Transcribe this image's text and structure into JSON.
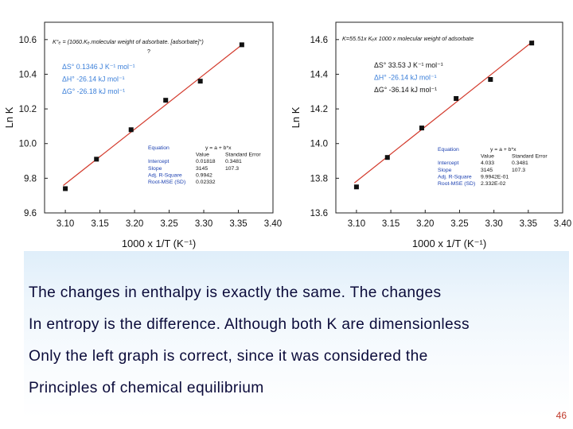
{
  "chart_data": [
    {
      "type": "scatter",
      "x": [
        3.1,
        3.145,
        3.195,
        3.245,
        3.295,
        3.355
      ],
      "y": [
        9.74,
        9.91,
        10.08,
        10.25,
        10.36,
        10.57
      ],
      "fit_line": {
        "intercept": 0.01818,
        "slope": 3.145
      },
      "xlabel": "1000 x 1/T (K⁻¹)",
      "ylabel": "Ln K",
      "xlim": [
        3.07,
        3.4
      ],
      "ylim": [
        9.6,
        10.7
      ],
      "xticks": [
        "3.10",
        "3.15",
        "3.20",
        "3.25",
        "3.30",
        "3.35",
        "3.40"
      ],
      "yticks": [
        "9.6",
        "9.8",
        "10.0",
        "10.2",
        "10.4",
        "10.6"
      ],
      "annotation_top": "K°ₑ = (1060.Kₑ.molecular weight of adsorbate. [adsorbate]°)",
      "annotation_top_sub": "?",
      "annotations": [
        "ΔS° 0.1346 J K⁻¹ mol⁻¹",
        "ΔH° -26.14 kJ mol⁻¹",
        "ΔG° -26.18 kJ mol⁻¹"
      ],
      "annotation_colors": [
        "#3b7fd9",
        "#3b7fd9",
        "#3b7fd9"
      ],
      "fit_table": {
        "equation_label": "Equation",
        "equation": "y = a + b*x",
        "col_value": "Value",
        "col_error": "Standard Error",
        "rows": [
          {
            "label": "Intercept",
            "value": "0.01818",
            "error": "0.3481"
          },
          {
            "label": "Slope",
            "value": "3145",
            "error": "107.3"
          },
          {
            "label": "Adj. R-Square",
            "value": "0.9942",
            "error": ""
          },
          {
            "label": "Root-MSE (SD)",
            "value": "0.02332",
            "error": ""
          }
        ]
      }
    },
    {
      "type": "scatter",
      "x": [
        3.1,
        3.145,
        3.195,
        3.245,
        3.295,
        3.355
      ],
      "y": [
        13.75,
        13.92,
        14.09,
        14.26,
        14.37,
        14.58
      ],
      "fit_line": {
        "intercept": 4.033,
        "slope": 3.145
      },
      "xlabel": "1000 x 1/T (K⁻¹)",
      "ylabel": "Ln K",
      "xlim": [
        3.07,
        3.4
      ],
      "ylim": [
        13.6,
        14.7
      ],
      "xticks": [
        "3.10",
        "3.15",
        "3.20",
        "3.25",
        "3.30",
        "3.35",
        "3.40"
      ],
      "yticks": [
        "13.6",
        "13.8",
        "14.0",
        "14.2",
        "14.4",
        "14.6"
      ],
      "annotation_top": "K=55.51x Kₑx 1000 x molecular weight of adsorbate",
      "annotations": [
        "ΔS° 33.53 J K⁻¹ mol⁻¹",
        "ΔH° -26.14 kJ mol⁻¹",
        "ΔG° -36.14 kJ mol⁻¹"
      ],
      "annotation_colors": [
        "#111111",
        "#3b7fd9",
        "#111111"
      ],
      "fit_table": {
        "equation_label": "Equation",
        "equation": "y = a + b*x",
        "col_value": "Value",
        "col_error": "Standard Error",
        "rows": [
          {
            "label": "Intercept",
            "value": "4.033",
            "error": "0.3481"
          },
          {
            "label": "Slope",
            "value": "3145",
            "error": "107.3"
          },
          {
            "label": "Adj. R-Square",
            "value": "9.9942E-01",
            "error": ""
          },
          {
            "label": "Root-MSE (SD)",
            "value": "2.332E-02",
            "error": ""
          }
        ]
      }
    }
  ],
  "body_lines": [
    "The changes in enthalpy is exactly the same. The changes",
    "In entropy is the difference. Although both K are dimensionless",
    "Only the left graph is correct, since it was considered the",
    "Principles of chemical equilibrium"
  ],
  "page_number": "46",
  "colors": {
    "text": "#0b0b3a",
    "fit_line": "#d33a2c",
    "marker": "#111111",
    "page_number": "#c0392b",
    "accent_blue": "#3b7fd9"
  }
}
